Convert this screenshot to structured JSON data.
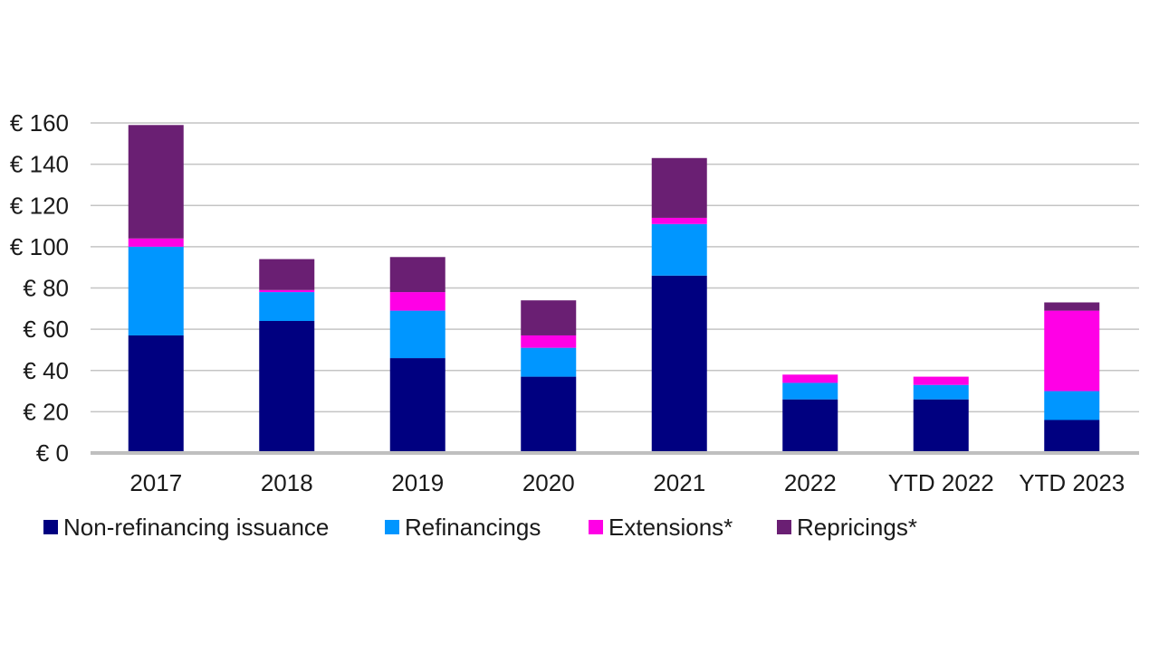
{
  "chart_data": {
    "type": "bar",
    "stacked": true,
    "title": "",
    "xlabel": "",
    "ylabel": "",
    "categories": [
      "2017",
      "2018",
      "2019",
      "2020",
      "2021",
      "2022",
      "YTD 2022",
      "YTD 2023"
    ],
    "series": [
      {
        "name": "Non-refinancing issuance",
        "color": "#000080",
        "values": [
          57,
          64,
          46,
          37,
          86,
          26,
          26,
          16
        ]
      },
      {
        "name": "Refinancings",
        "color": "#0096ff",
        "values": [
          43,
          14,
          23,
          14,
          25,
          8,
          7,
          14
        ]
      },
      {
        "name": "Extensions*",
        "color": "#ff00e6",
        "values": [
          4,
          1,
          9,
          6,
          3,
          4,
          4,
          39
        ]
      },
      {
        "name": "Repricings*",
        "color": "#6a1f73",
        "values": [
          55,
          15,
          17,
          17,
          29,
          0,
          0,
          4
        ]
      }
    ],
    "ylim": [
      0,
      160
    ],
    "yticks": [
      0,
      20,
      40,
      60,
      80,
      100,
      120,
      140,
      160
    ],
    "ytick_labels": [
      "€ 0",
      "€ 20",
      "€ 40",
      "€ 60",
      "€ 80",
      "€ 100",
      "€ 120",
      "€ 140",
      "€ 160"
    ],
    "grid": true,
    "legend_position": "bottom"
  }
}
